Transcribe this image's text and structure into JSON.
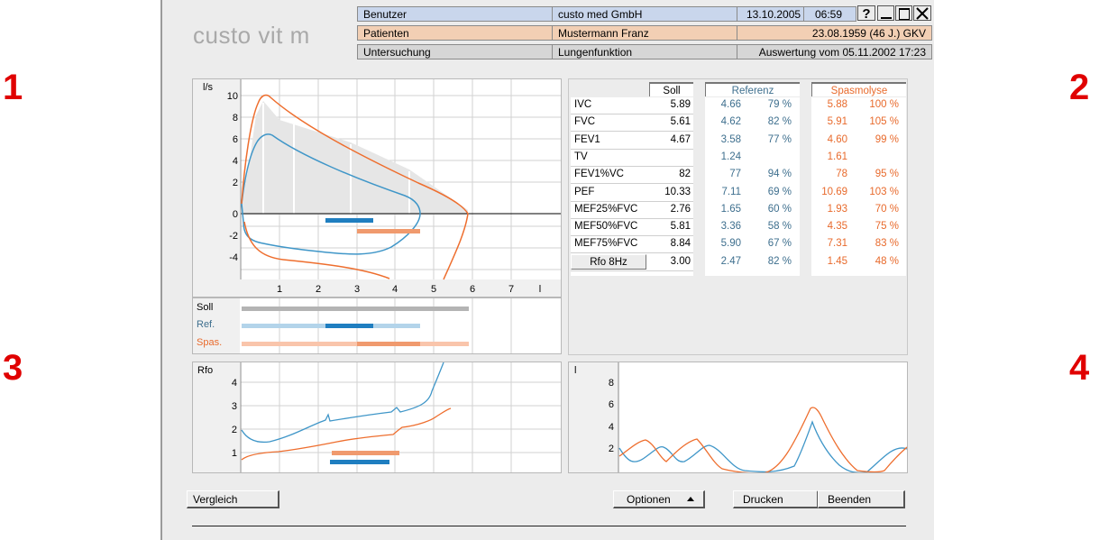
{
  "callouts": [
    "1",
    "2",
    "3",
    "4"
  ],
  "app": {
    "logo": "custo vit m"
  },
  "header": {
    "row1": {
      "label": "Benutzer",
      "value": "custo med GmbH",
      "date": "13.10.2005",
      "time": "06:59"
    },
    "row2": {
      "label": "Patienten",
      "value": "Mustermann Franz",
      "right": "23.08.1959 (46 J.)  GKV"
    },
    "row3": {
      "label": "Untersuchung",
      "value": "Lungenfunktion",
      "right": "Auswertung vom 05.11.2002  17:23"
    },
    "help_label": "?"
  },
  "flow_volume": {
    "y_unit": "l/s",
    "y_ticks": [
      "10",
      "8",
      "6",
      "4",
      "2",
      "0",
      "-2",
      "-4"
    ],
    "x_ticks": [
      "1",
      "2",
      "3",
      "4",
      "5",
      "6",
      "7",
      "l"
    ]
  },
  "bars_panel": {
    "labels": [
      "Soll",
      "Ref.",
      "Spas."
    ]
  },
  "rfo_panel": {
    "y_unit": "Rfo",
    "y_ticks": [
      "4",
      "3",
      "2",
      "1"
    ]
  },
  "volume_time": {
    "y_unit": "l",
    "y_ticks": [
      "8",
      "6",
      "4",
      "2"
    ]
  },
  "table": {
    "headers": {
      "soll": "Soll",
      "referenz": "Referenz",
      "spasmolyse": "Spasmolyse"
    },
    "rows": [
      {
        "param": "IVC",
        "soll": "5.89",
        "ref": "4.66",
        "ref_pct": "79 %",
        "spas": "5.88",
        "spas_pct": "100 %"
      },
      {
        "param": "FVC",
        "soll": "5.61",
        "ref": "4.62",
        "ref_pct": "82 %",
        "spas": "5.91",
        "spas_pct": "105 %"
      },
      {
        "param": "FEV1",
        "soll": "4.67",
        "ref": "3.58",
        "ref_pct": "77 %",
        "spas": "4.60",
        "spas_pct": "99 %"
      },
      {
        "param": "TV",
        "soll": "",
        "ref": "1.24",
        "ref_pct": "",
        "spas": "1.61",
        "spas_pct": ""
      },
      {
        "param": "FEV1%VC",
        "soll": "82",
        "ref": "77",
        "ref_pct": "94 %",
        "spas": "78",
        "spas_pct": "95 %"
      },
      {
        "param": "PEF",
        "soll": "10.33",
        "ref": "7.11",
        "ref_pct": "69 %",
        "spas": "10.69",
        "spas_pct": "103 %"
      },
      {
        "param": "MEF25%FVC",
        "soll": "2.76",
        "ref": "1.65",
        "ref_pct": "60 %",
        "spas": "1.93",
        "spas_pct": "70 %"
      },
      {
        "param": "MEF50%FVC",
        "soll": "5.81",
        "ref": "3.36",
        "ref_pct": "58 %",
        "spas": "4.35",
        "spas_pct": "75 %"
      },
      {
        "param": "MEF75%FVC",
        "soll": "8.84",
        "ref": "5.90",
        "ref_pct": "67 %",
        "spas": "7.31",
        "spas_pct": "83 %"
      },
      {
        "param": "Rfo 8Hz",
        "soll": "3.00",
        "ref": "2.47",
        "ref_pct": "82 %",
        "spas": "1.45",
        "spas_pct": "48 %"
      }
    ]
  },
  "buttons": {
    "vergleich": "Vergleich",
    "optionen": "Optionen",
    "drucken": "Drucken",
    "beenden": "Beenden"
  },
  "colors": {
    "reference": "#3f96c8",
    "spasmolyse": "#ee6e2e",
    "soll_bar": "#b4b4b4"
  }
}
